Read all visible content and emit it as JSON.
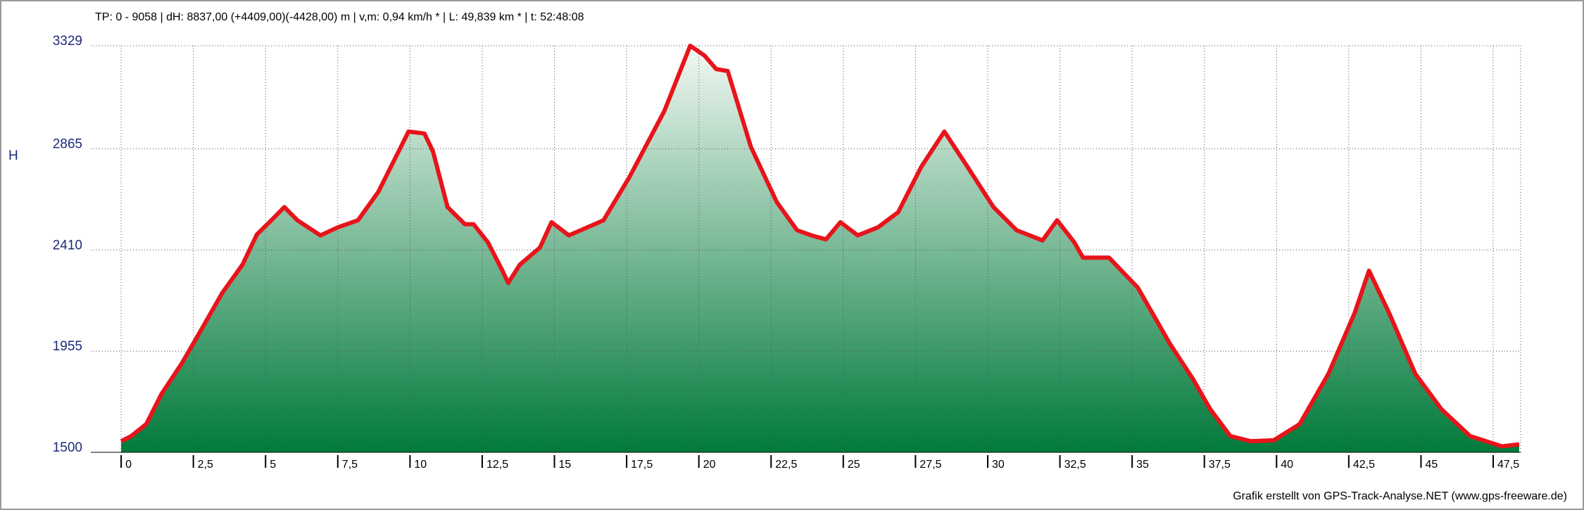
{
  "chart_data": {
    "type": "area",
    "title": "TP: 0 - 9058 | dH: 8837,00  (+4409,00)(-4428,00) m | v,m: 0,94 km/h * | L: 49,839 km * | t: 52:48:08",
    "y_label": "H",
    "footer": "Grafik erstellt von GPS-Track-Analyse.NET (www.gps-freeware.de)",
    "color": "#e8141b",
    "fill_top": "#f2f8f3",
    "fill_bottom": "#007a3a",
    "grid": true,
    "xlim": [
      -1.05,
      48.45
    ],
    "ylim": [
      1500,
      3329
    ],
    "yticks": [
      1500,
      1955,
      2410,
      2865,
      3329
    ],
    "xticks": [
      0,
      {
        "value": 2.5,
        "label": "2,5"
      },
      5,
      {
        "value": 7.5,
        "label": "7,5"
      },
      10,
      {
        "value": 12.5,
        "label": "12,5"
      },
      15,
      {
        "value": 17.5,
        "label": "17,5"
      },
      20,
      {
        "value": 22.5,
        "label": "22,5"
      },
      25,
      {
        "value": 27.5,
        "label": "27,5"
      },
      30,
      {
        "value": 32.5,
        "label": "32,5"
      },
      35,
      {
        "value": 37.5,
        "label": "37,5"
      },
      40,
      {
        "value": 42.5,
        "label": "42,5"
      },
      45,
      {
        "value": 47.5,
        "label": "47,5"
      }
    ],
    "x": [
      0,
      0.35,
      0.87,
      1.4,
      2.1,
      2.8,
      3.5,
      4.2,
      4.7,
      5.2,
      5.65,
      6.1,
      6.9,
      7.5,
      8.2,
      8.9,
      9.6,
      9.95,
      10.5,
      10.8,
      11.3,
      11.9,
      12.2,
      12.7,
      13.2,
      13.4,
      13.8,
      14.5,
      14.9,
      15.5,
      16.7,
      17.6,
      18.8,
      19.7,
      20.2,
      20.6,
      21.0,
      21.8,
      22.7,
      23.4,
      23.9,
      24.4,
      24.9,
      25.5,
      26.2,
      26.9,
      27.7,
      28.5,
      29.3,
      30.2,
      31.0,
      31.9,
      32.4,
      33.0,
      33.3,
      34.2,
      35.2,
      36.3,
      37.1,
      37.7,
      38.4,
      39.1,
      39.9,
      40.8,
      41.8,
      42.7,
      43.2,
      43.9,
      44.8,
      45.7,
      46.7,
      47.8,
      48.4
    ],
    "values": [
      1550,
      1573,
      1627,
      1763,
      1900,
      2058,
      2217,
      2344,
      2480,
      2544,
      2603,
      2544,
      2476,
      2512,
      2544,
      2671,
      2852,
      2943,
      2934,
      2852,
      2603,
      2526,
      2526,
      2444,
      2317,
      2262,
      2344,
      2421,
      2535,
      2476,
      2544,
      2739,
      3034,
      3329,
      3284,
      3224,
      3215,
      2875,
      2625,
      2499,
      2476,
      2458,
      2535,
      2476,
      2512,
      2580,
      2784,
      2943,
      2784,
      2603,
      2499,
      2453,
      2544,
      2444,
      2376,
      2376,
      2240,
      1990,
      1831,
      1695,
      1573,
      1550,
      1554,
      1627,
      1854,
      2126,
      2317,
      2126,
      1854,
      1695,
      1573,
      1527,
      1536
    ]
  }
}
